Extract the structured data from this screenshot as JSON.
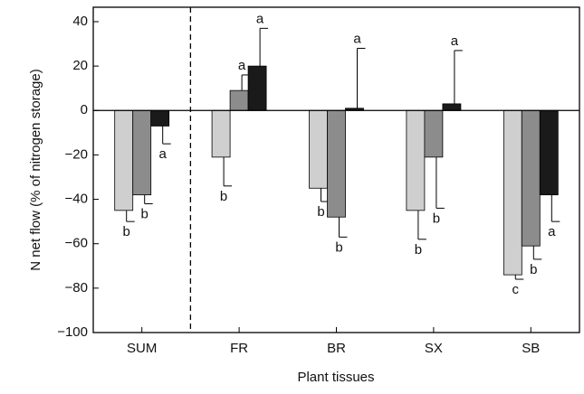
{
  "chart_data": {
    "type": "bar",
    "y_label": "N net flow (% of nitrogen storage)",
    "x_label": "Plant tissues",
    "categories": [
      "SUM",
      "FR",
      "BR",
      "SX",
      "SB"
    ],
    "series": [
      {
        "color": "#cfcfcf",
        "values": [
          -45,
          -21,
          -35,
          -45,
          -74
        ],
        "errors": [
          5,
          13,
          6,
          13,
          2
        ],
        "letters": [
          "b",
          "b",
          "b",
          "b",
          "c"
        ]
      },
      {
        "color": "#8c8c8c",
        "values": [
          -38,
          9,
          -48,
          -21,
          -61
        ],
        "errors": [
          4,
          7,
          9,
          23,
          6
        ],
        "letters": [
          "b",
          "a",
          "b",
          "b",
          "b"
        ]
      },
      {
        "color": "#1a1a1a",
        "values": [
          -7,
          20,
          1,
          3,
          -38
        ],
        "errors": [
          8,
          17,
          27,
          24,
          12
        ],
        "letters": [
          "a",
          "a",
          "a",
          "a",
          "a"
        ]
      }
    ],
    "ylim": [
      -100,
      46.5
    ],
    "yticks": [
      {
        "value": -100,
        "label": "−100"
      },
      {
        "value": -80,
        "label": "−80"
      },
      {
        "value": -60,
        "label": "−60"
      },
      {
        "value": -40,
        "label": "−40"
      },
      {
        "value": -20,
        "label": "−20"
      },
      0,
      20,
      40
    ]
  }
}
